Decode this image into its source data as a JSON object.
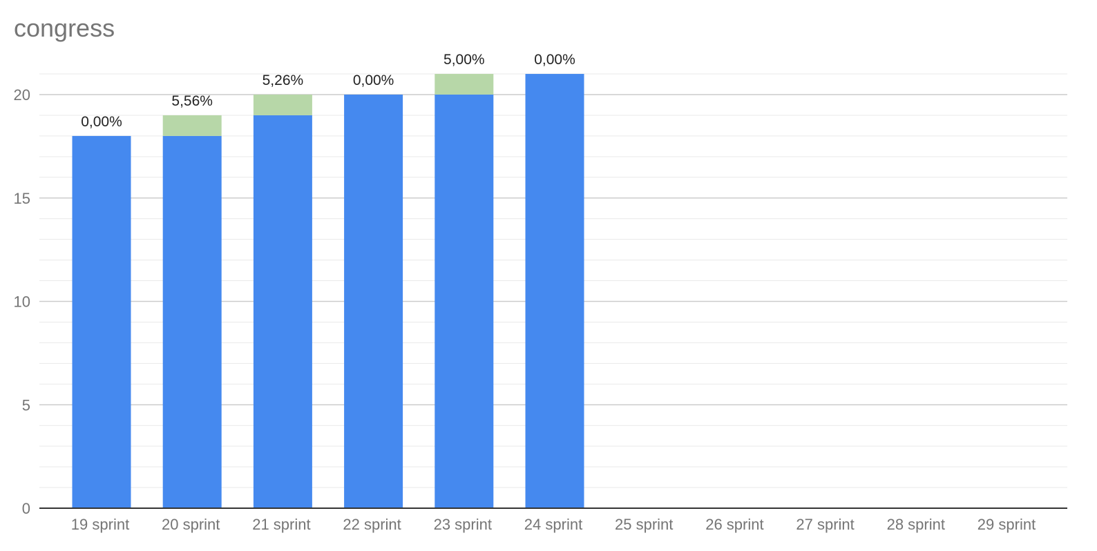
{
  "chart_data": {
    "type": "bar",
    "stacked": true,
    "title": "congress",
    "xlabel": "",
    "ylabel": "",
    "categories": [
      "19 sprint",
      "20 sprint",
      "21 sprint",
      "22 sprint",
      "23 sprint",
      "24 sprint",
      "25 sprint",
      "26 sprint",
      "27 sprint",
      "28 sprint",
      "29 sprint"
    ],
    "series": [
      {
        "color": "#4589ef",
        "values": [
          18,
          18,
          19,
          20,
          20,
          21,
          null,
          null,
          null,
          null,
          null
        ]
      },
      {
        "color": "#b7d7a8",
        "values": [
          0,
          1,
          1,
          0,
          1,
          0,
          null,
          null,
          null,
          null,
          null
        ]
      }
    ],
    "data_labels": [
      "0,00%",
      "5,56%",
      "5,26%",
      "0,00%",
      "5,00%",
      "0,00%",
      "",
      "",
      "",
      "",
      ""
    ],
    "ylim": [
      0,
      21
    ],
    "yticks": [
      0,
      5,
      10,
      15,
      20
    ],
    "grid": true,
    "legend": "none"
  }
}
